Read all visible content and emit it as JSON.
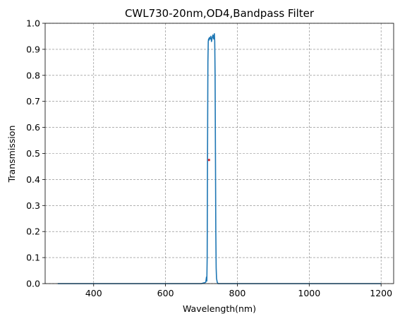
{
  "chart_data": {
    "type": "line",
    "title": "CWL730-20nm,OD4,Bandpass Filter",
    "xlabel": "Wavelength(nm)",
    "ylabel": "Transmission",
    "xlim": [
      265,
      1235
    ],
    "ylim": [
      0,
      1.0
    ],
    "xticks": [
      400,
      600,
      800,
      1000,
      1200
    ],
    "yticks": [
      0.0,
      0.1,
      0.2,
      0.3,
      0.4,
      0.5,
      0.6,
      0.7,
      0.8,
      0.9,
      1.0
    ],
    "grid": true,
    "series": [
      {
        "color": "#1f77b4",
        "x": [
          300,
          700,
          712,
          714,
          715,
          716,
          717,
          718,
          719,
          720,
          721,
          722,
          724,
          726,
          728,
          730,
          732,
          734,
          736,
          737,
          738,
          739,
          740,
          741,
          742,
          744,
          746,
          750,
          800,
          1200
        ],
        "y": [
          0.0,
          0.0,
          0.005,
          0.025,
          0.01,
          0.1,
          0.5,
          0.85,
          0.93,
          0.94,
          0.935,
          0.945,
          0.94,
          0.95,
          0.93,
          0.945,
          0.955,
          0.94,
          0.96,
          0.93,
          0.8,
          0.5,
          0.2,
          0.06,
          0.02,
          0.005,
          0.0,
          0.0,
          0.0,
          0.0
        ]
      }
    ],
    "markers": [
      {
        "x": 721,
        "y": 0.475,
        "color": "#d62728"
      }
    ]
  }
}
